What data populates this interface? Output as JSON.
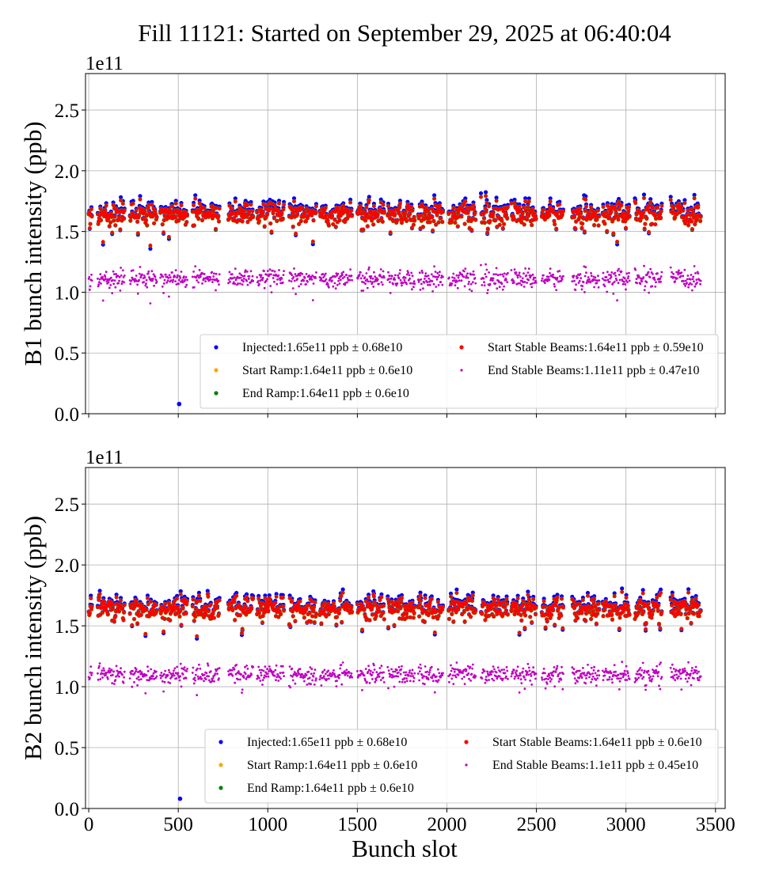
{
  "chart_data": {
    "title": "Fill 11121: Started on September 29, 2025 at 06:40:04",
    "type": "scatter",
    "xlabel": "Bunch slot",
    "xlim": [
      -18,
      3554
    ],
    "xticks": [
      "0",
      "500",
      "1000",
      "1500",
      "2000",
      "2500",
      "3000",
      "3500"
    ],
    "grid": true,
    "filled_slot_ranges": [
      [
        0,
        20
      ],
      [
        50,
        200
      ],
      [
        230,
        380
      ],
      [
        400,
        550
      ],
      [
        580,
        730
      ],
      [
        780,
        920
      ],
      [
        940,
        1090
      ],
      [
        1120,
        1270
      ],
      [
        1290,
        1470
      ],
      [
        1500,
        1650
      ],
      [
        1670,
        1820
      ],
      [
        1840,
        1980
      ],
      [
        2010,
        2160
      ],
      [
        2190,
        2340
      ],
      [
        2360,
        2500
      ],
      [
        2530,
        2650
      ],
      [
        2700,
        2850
      ],
      [
        2870,
        3020
      ],
      [
        3050,
        3200
      ],
      [
        3250,
        3420
      ]
    ],
    "panels": [
      {
        "ylabel": "B1 bunch intensity (ppb)",
        "offset_label": "1e11",
        "ylim": [
          0,
          2.8
        ],
        "yticks": [
          "0.0",
          "0.5",
          "1.0",
          "1.5",
          "2.0",
          "2.5"
        ],
        "legend_position": "lower-right",
        "series": [
          {
            "name": "Injected:1.65e11 ppb ± 0.68e10",
            "mean": 1.65,
            "std": 0.068,
            "color": "#0000ff",
            "outliers": [
              [
                505,
                0.08
              ]
            ]
          },
          {
            "name": "Start Ramp:1.64e11 ppb ± 0.6e10",
            "mean": 1.64,
            "std": 0.06,
            "color": "#ffa500"
          },
          {
            "name": "End Ramp:1.64e11 ppb ± 0.6e10",
            "mean": 1.64,
            "std": 0.06,
            "color": "#008000"
          },
          {
            "name": "Start Stable Beams:1.64e11 ppb ± 0.59e10",
            "mean": 1.64,
            "std": 0.059,
            "color": "#ff0000"
          },
          {
            "name": "End Stable Beams:1.11e11 ppb ± 0.47e10",
            "mean": 1.11,
            "std": 0.047,
            "color": "#bf00bf"
          }
        ]
      },
      {
        "ylabel": "B2 bunch intensity (ppb)",
        "offset_label": "1e11",
        "ylim": [
          0,
          2.8
        ],
        "yticks": [
          "0.0",
          "0.5",
          "1.0",
          "1.5",
          "2.0",
          "2.5"
        ],
        "legend_position": "lower-right",
        "series": [
          {
            "name": "Injected:1.65e11 ppb ± 0.68e10",
            "mean": 1.65,
            "std": 0.068,
            "color": "#0000ff",
            "outliers": [
              [
                510,
                0.08
              ]
            ]
          },
          {
            "name": "Start Ramp:1.64e11 ppb ± 0.6e10",
            "mean": 1.64,
            "std": 0.06,
            "color": "#ffa500"
          },
          {
            "name": "End Ramp:1.64e11 ppb ± 0.6e10",
            "mean": 1.64,
            "std": 0.06,
            "color": "#008000"
          },
          {
            "name": "Start Stable Beams:1.64e11 ppb ± 0.6e10",
            "mean": 1.64,
            "std": 0.06,
            "color": "#ff0000"
          },
          {
            "name": "End Stable Beams:1.1e11 ppb ± 0.45e10",
            "mean": 1.1,
            "std": 0.045,
            "color": "#bf00bf"
          }
        ]
      }
    ]
  }
}
